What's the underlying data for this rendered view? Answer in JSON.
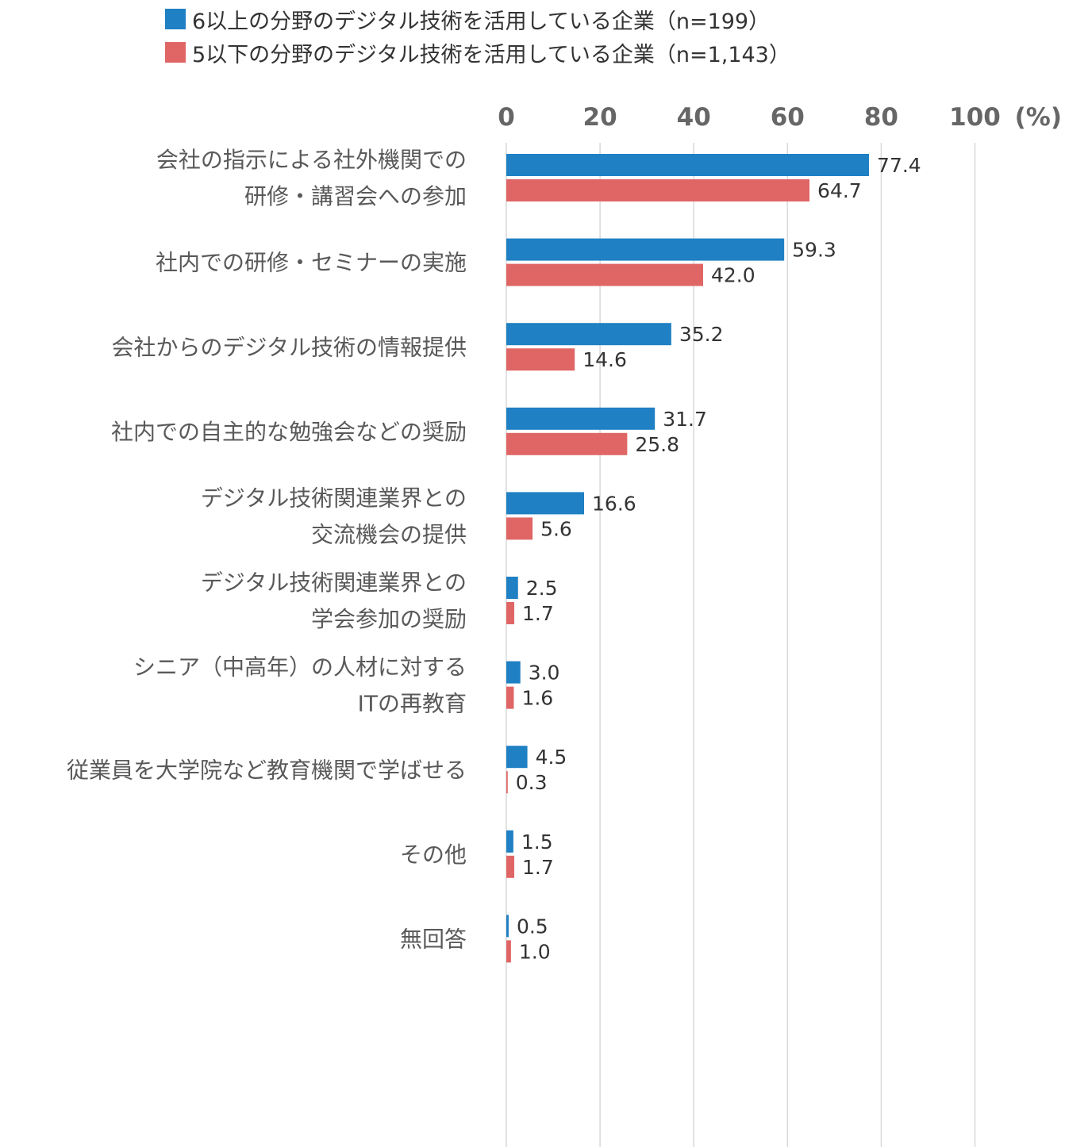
{
  "legend": [
    {
      "label": "6以上の分野のデジタル技術を活用している企業（n=199）",
      "color": "#1f80c3"
    },
    {
      "label": "5以下の分野のデジタル技術を活用している企業（n=1,143）",
      "color": "#e06666"
    }
  ],
  "chart_data": {
    "type": "bar",
    "orientation": "horizontal",
    "title": "",
    "xlabel": "(%)",
    "xlim": [
      0,
      100
    ],
    "xticks": [
      0,
      20,
      40,
      60,
      80,
      100
    ],
    "grid": true,
    "legend_position": "top",
    "categories": [
      [
        "会社の指示による社外機関での",
        "研修・講習会への参加"
      ],
      [
        "社内での研修・セミナーの実施"
      ],
      [
        "会社からのデジタル技術の情報提供"
      ],
      [
        "社内での自主的な勉強会などの奨励"
      ],
      [
        "デジタル技術関連業界との",
        "交流機会の提供"
      ],
      [
        "デジタル技術関連業界との",
        "学会参加の奨励"
      ],
      [
        "シニア（中高年）の人材に対する",
        "ITの再教育"
      ],
      [
        "従業員を大学院など教育機関で学ばせる"
      ],
      [
        "その他"
      ],
      [
        "無回答"
      ]
    ],
    "series": [
      {
        "name": "6以上の分野のデジタル技術を活用している企業（n=199）",
        "color": "#1f80c3",
        "values": [
          77.4,
          59.3,
          35.2,
          31.7,
          16.6,
          2.5,
          3.0,
          4.5,
          1.5,
          0.5
        ],
        "labels": [
          "77.4",
          "59.3",
          "35.2",
          "31.7",
          "16.6",
          "2.5",
          "3.0",
          "4.5",
          "1.5",
          "0.5"
        ]
      },
      {
        "name": "5以下の分野のデジタル技術を活用している企業（n=1,143）",
        "color": "#e06666",
        "values": [
          64.7,
          42.0,
          14.6,
          25.8,
          5.6,
          1.7,
          1.6,
          0.3,
          1.7,
          1.0
        ],
        "labels": [
          "64.7",
          "42.0",
          "14.6",
          "25.8",
          "5.6",
          "1.7",
          "1.6",
          "0.3",
          "1.7",
          "1.0"
        ]
      }
    ]
  }
}
